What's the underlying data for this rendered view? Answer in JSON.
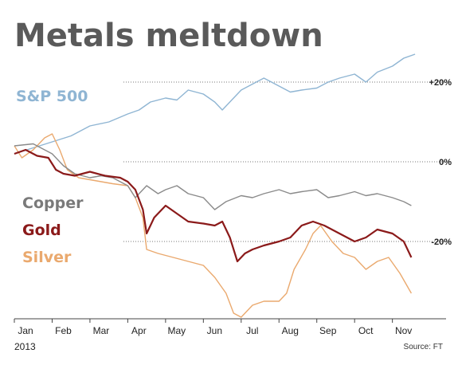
{
  "chart_data": {
    "type": "line",
    "title": "Metals meltdown",
    "source": "Source: FT",
    "year_label": "2013",
    "x_ticks": [
      "Jan",
      "Feb",
      "Mar",
      "Apr",
      "May",
      "Jun",
      "Jul",
      "Aug",
      "Sep",
      "Oct",
      "Nov"
    ],
    "y_ticks": [
      {
        "value": 20,
        "label": "+20%"
      },
      {
        "value": 0,
        "label": "0%"
      },
      {
        "value": -20,
        "label": "-20%"
      }
    ],
    "ylim": [
      -40,
      28
    ],
    "xlim": [
      0,
      10.85
    ],
    "grid": "dotted horizontal",
    "series": [
      {
        "name": "S&P 500",
        "color": "#8fb5d3",
        "points": [
          [
            0,
            2
          ],
          [
            0.5,
            3.5
          ],
          [
            1,
            5
          ],
          [
            1.5,
            6.5
          ],
          [
            2,
            9
          ],
          [
            2.5,
            10
          ],
          [
            3,
            12
          ],
          [
            3.3,
            13
          ],
          [
            3.6,
            15
          ],
          [
            4,
            16
          ],
          [
            4.3,
            15.5
          ],
          [
            4.6,
            18
          ],
          [
            5,
            17
          ],
          [
            5.3,
            15
          ],
          [
            5.5,
            13
          ],
          [
            5.8,
            16
          ],
          [
            6,
            18
          ],
          [
            6.3,
            19.5
          ],
          [
            6.6,
            21
          ],
          [
            7,
            19
          ],
          [
            7.3,
            17.5
          ],
          [
            7.6,
            18
          ],
          [
            8,
            18.5
          ],
          [
            8.3,
            20
          ],
          [
            8.6,
            21
          ],
          [
            9,
            22
          ],
          [
            9.3,
            20
          ],
          [
            9.6,
            22.5
          ],
          [
            10,
            24
          ],
          [
            10.3,
            26
          ],
          [
            10.6,
            27
          ]
        ]
      },
      {
        "name": "Copper",
        "color": "#8a8a8a",
        "points": [
          [
            0,
            4
          ],
          [
            0.5,
            4.5
          ],
          [
            1,
            2
          ],
          [
            1.3,
            -1
          ],
          [
            1.6,
            -3
          ],
          [
            2,
            -4
          ],
          [
            2.3,
            -3.5
          ],
          [
            2.6,
            -4
          ],
          [
            3,
            -6
          ],
          [
            3.2,
            -9
          ],
          [
            3.5,
            -6
          ],
          [
            3.8,
            -8
          ],
          [
            4,
            -7
          ],
          [
            4.3,
            -6
          ],
          [
            4.6,
            -8
          ],
          [
            5,
            -9
          ],
          [
            5.3,
            -12
          ],
          [
            5.6,
            -10
          ],
          [
            6,
            -8.5
          ],
          [
            6.3,
            -9
          ],
          [
            6.6,
            -8
          ],
          [
            7,
            -7
          ],
          [
            7.3,
            -8
          ],
          [
            7.6,
            -7.5
          ],
          [
            8,
            -7
          ],
          [
            8.3,
            -9
          ],
          [
            8.6,
            -8.5
          ],
          [
            9,
            -7.5
          ],
          [
            9.3,
            -8.5
          ],
          [
            9.6,
            -8
          ],
          [
            10,
            -9
          ],
          [
            10.3,
            -10
          ],
          [
            10.5,
            -11
          ]
        ]
      },
      {
        "name": "Gold",
        "color": "#8b1a1a",
        "points": [
          [
            0,
            2
          ],
          [
            0.3,
            3
          ],
          [
            0.6,
            1.5
          ],
          [
            0.9,
            1
          ],
          [
            1.1,
            -2
          ],
          [
            1.3,
            -3
          ],
          [
            1.6,
            -3.5
          ],
          [
            2,
            -2.5
          ],
          [
            2.4,
            -3.5
          ],
          [
            2.8,
            -4
          ],
          [
            3,
            -5
          ],
          [
            3.2,
            -7
          ],
          [
            3.4,
            -12
          ],
          [
            3.5,
            -18
          ],
          [
            3.7,
            -14
          ],
          [
            4,
            -11
          ],
          [
            4.3,
            -13
          ],
          [
            4.6,
            -15
          ],
          [
            5,
            -15.5
          ],
          [
            5.3,
            -16
          ],
          [
            5.5,
            -15
          ],
          [
            5.7,
            -19
          ],
          [
            5.9,
            -25
          ],
          [
            6.1,
            -23
          ],
          [
            6.3,
            -22
          ],
          [
            6.6,
            -21
          ],
          [
            7,
            -20
          ],
          [
            7.3,
            -19
          ],
          [
            7.6,
            -16
          ],
          [
            7.9,
            -15
          ],
          [
            8.2,
            -16
          ],
          [
            8.6,
            -18
          ],
          [
            9,
            -20
          ],
          [
            9.3,
            -19
          ],
          [
            9.6,
            -17
          ],
          [
            10,
            -18
          ],
          [
            10.3,
            -20
          ],
          [
            10.5,
            -24
          ]
        ]
      },
      {
        "name": "Silver",
        "color": "#eaa96e",
        "points": [
          [
            0,
            4
          ],
          [
            0.2,
            1
          ],
          [
            0.5,
            3
          ],
          [
            0.8,
            6
          ],
          [
            1,
            7
          ],
          [
            1.2,
            3
          ],
          [
            1.4,
            -2
          ],
          [
            1.7,
            -4
          ],
          [
            2,
            -4.5
          ],
          [
            2.3,
            -5
          ],
          [
            2.6,
            -5.5
          ],
          [
            3,
            -6
          ],
          [
            3.2,
            -9
          ],
          [
            3.4,
            -14
          ],
          [
            3.5,
            -22
          ],
          [
            3.8,
            -23
          ],
          [
            4.2,
            -24
          ],
          [
            4.6,
            -25
          ],
          [
            5,
            -26
          ],
          [
            5.3,
            -29
          ],
          [
            5.6,
            -33
          ],
          [
            5.8,
            -38
          ],
          [
            6,
            -39
          ],
          [
            6.3,
            -36
          ],
          [
            6.6,
            -35
          ],
          [
            7,
            -35
          ],
          [
            7.2,
            -33
          ],
          [
            7.4,
            -27
          ],
          [
            7.7,
            -22
          ],
          [
            7.9,
            -18
          ],
          [
            8.1,
            -16
          ],
          [
            8.4,
            -20
          ],
          [
            8.7,
            -23
          ],
          [
            9,
            -24
          ],
          [
            9.3,
            -27
          ],
          [
            9.6,
            -25
          ],
          [
            9.9,
            -24
          ],
          [
            10.2,
            -28
          ],
          [
            10.5,
            -33
          ]
        ]
      }
    ]
  }
}
